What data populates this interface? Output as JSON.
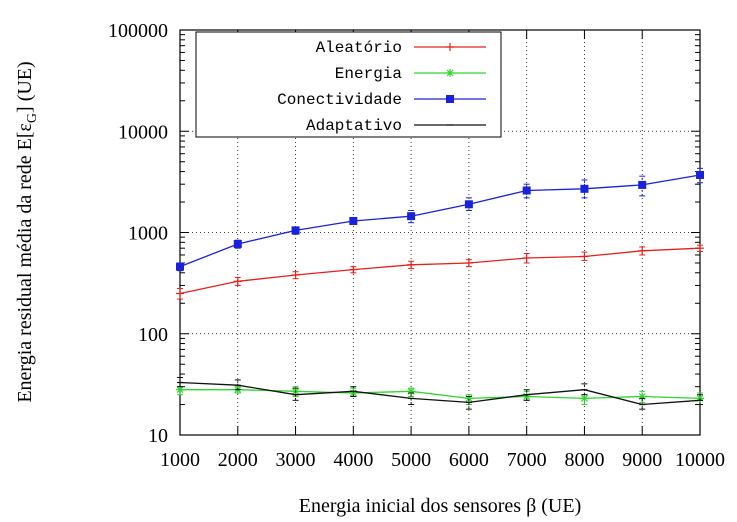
{
  "chart_data": {
    "type": "line",
    "title": "",
    "xlabel": "Energia inicial dos sensores β (UE)",
    "ylabel_main": "Energia residual média da rede E[ε",
    "ylabel_sub": "G",
    "ylabel_end": "] (UE)",
    "yscale": "log",
    "xlim": [
      1000,
      10000
    ],
    "ylim": [
      10,
      100000
    ],
    "x": [
      1000,
      2000,
      3000,
      4000,
      5000,
      6000,
      7000,
      8000,
      9000,
      10000
    ],
    "x_tick_labels": [
      "1000",
      "2000",
      "3000",
      "4000",
      "5000",
      "6000",
      "7000",
      "8000",
      "9000",
      "10000"
    ],
    "y_ticks": [
      10,
      100,
      1000,
      10000,
      100000
    ],
    "y_tick_labels": [
      "10",
      "100",
      "1000",
      "10000",
      "100000"
    ],
    "grid": true,
    "legend_position": "top-left",
    "series": [
      {
        "name": "Aleatório",
        "color": "#e8201c",
        "marker": "plus",
        "values": [
          250,
          330,
          380,
          430,
          480,
          500,
          560,
          580,
          660,
          700
        ],
        "err_low": [
          220,
          300,
          350,
          400,
          440,
          460,
          500,
          530,
          600,
          650
        ],
        "err_high": [
          280,
          360,
          410,
          460,
          520,
          540,
          620,
          640,
          720,
          750
        ]
      },
      {
        "name": "Energia",
        "color": "#2ed62e",
        "marker": "star",
        "values": [
          28,
          28,
          27,
          26,
          27,
          23,
          24,
          23,
          24,
          23
        ],
        "err_low": [
          25,
          26,
          24,
          24,
          24,
          20,
          22,
          20,
          21,
          20
        ],
        "err_high": [
          30,
          30,
          30,
          29,
          29,
          25,
          27,
          25,
          27,
          26
        ]
      },
      {
        "name": "Conectividade",
        "color": "#1a22d9",
        "marker": "square",
        "values": [
          460,
          770,
          1050,
          1300,
          1450,
          1900,
          2600,
          2700,
          2950,
          3700
        ],
        "err_low": [
          420,
          700,
          960,
          1200,
          1250,
          1650,
          2200,
          2200,
          2300,
          3100
        ],
        "err_high": [
          500,
          840,
          1130,
          1400,
          1650,
          2200,
          3000,
          3300,
          3600,
          4300
        ]
      },
      {
        "name": "Adaptativo",
        "color": "#111111",
        "marker": "tick",
        "values": [
          33,
          31,
          25,
          27,
          23,
          21,
          25,
          28,
          20,
          22
        ],
        "err_low": [
          30,
          28,
          22,
          24,
          20,
          18,
          22,
          25,
          18,
          20
        ],
        "err_high": [
          37,
          35,
          29,
          30,
          26,
          24,
          28,
          32,
          23,
          25
        ]
      }
    ]
  }
}
